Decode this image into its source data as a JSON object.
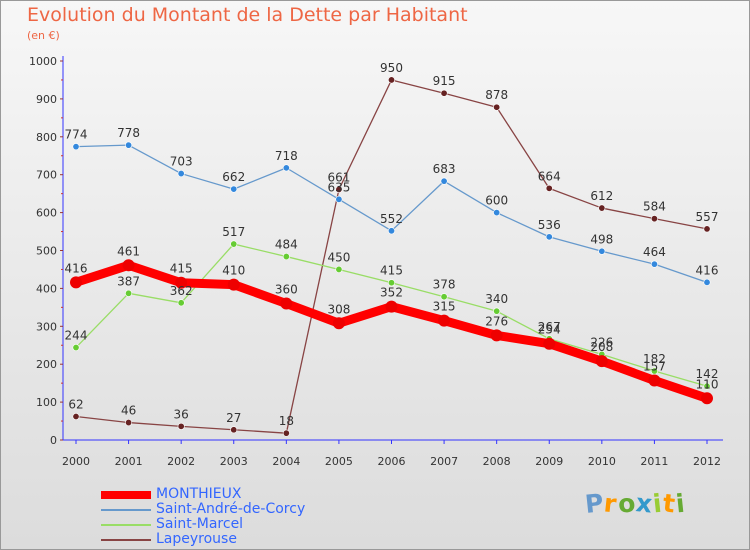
{
  "header": {
    "title": "Evolution du Montant de la Dette par Habitant",
    "unit": "(en €)"
  },
  "brand": {
    "text": "Proxiti",
    "colors": [
      "#6699cc",
      "#ff9900",
      "#66aa33",
      "#3399cc",
      "#99cc33",
      "#ff9900",
      "#66aa33"
    ]
  },
  "colors": {
    "title": "#ee6644",
    "axis_text": "#333333",
    "axis_line": "#3333ff",
    "legend_text": "#3366ff"
  },
  "chart_data": {
    "type": "line",
    "title": "Evolution du Montant de la Dette par Habitant",
    "subtitle": "(en €)",
    "xlabel": "",
    "ylabel": "",
    "x": [
      2000,
      2001,
      2002,
      2003,
      2004,
      2005,
      2006,
      2007,
      2008,
      2009,
      2010,
      2011,
      2012
    ],
    "ylim": [
      0,
      1000
    ],
    "yticks": [
      0,
      100,
      200,
      300,
      400,
      500,
      600,
      700,
      800,
      900,
      1000
    ],
    "grid": false,
    "legend_position": "bottom-left",
    "series": [
      {
        "name": "MONTHIEUX",
        "color": "#ff0000",
        "values": [
          416,
          461,
          415,
          410,
          360,
          308,
          352,
          315,
          276,
          254,
          208,
          157,
          110
        ],
        "labels": [
          "416",
          "461",
          "415",
          "410",
          "360",
          "308",
          "352",
          "315",
          "276",
          "254",
          "208",
          "157",
          "110"
        ]
      },
      {
        "name": "Saint-André-de-Corcy",
        "color": "#6699cc",
        "values": [
          774,
          778,
          703,
          662,
          718,
          635,
          552,
          683,
          600,
          536,
          498,
          464,
          416
        ],
        "labels": [
          "774",
          "778",
          "703",
          "662",
          "718",
          "635",
          "552",
          "683",
          "600",
          "536",
          "498",
          "464",
          "416"
        ]
      },
      {
        "name": "Saint-Marcel",
        "color": "#99dd66",
        "values": [
          244,
          387,
          362,
          517,
          484,
          450,
          415,
          378,
          340,
          267,
          226,
          182,
          142
        ],
        "labels": [
          "244",
          "387",
          "362",
          "517",
          "484",
          "450",
          "415",
          "378",
          "340",
          "267",
          "226",
          "182",
          "142"
        ]
      },
      {
        "name": "Lapeyrouse",
        "color": "#773333",
        "values": [
          62,
          46,
          36,
          27,
          18,
          661,
          950,
          915,
          878,
          664,
          612,
          584,
          557
        ],
        "labels": [
          "62",
          "46",
          "36",
          "27",
          "18",
          "661",
          "950",
          "915",
          "878",
          "664",
          "612",
          "584",
          "557"
        ]
      }
    ]
  }
}
